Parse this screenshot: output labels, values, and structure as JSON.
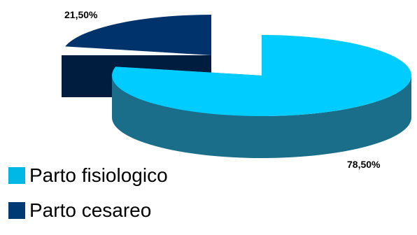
{
  "chart_data": {
    "type": "pie",
    "title": "",
    "categories": [
      "Parto fisiologico",
      "Parto cesareo"
    ],
    "values": [
      78.5,
      21.5
    ],
    "data_labels": [
      "78,50%",
      "21,50%"
    ],
    "colors": {
      "Parto fisiologico": {
        "top": "#00ccff",
        "side": "#1a6e8a"
      },
      "Parto cesareo": {
        "top": "#00336b",
        "side": "#001c3f"
      }
    },
    "three_d": true,
    "exploded": true,
    "legend_placement": "bottom-left"
  },
  "legend": {
    "items": [
      {
        "label": "Parto fisiologico",
        "color": "#00b8e6"
      },
      {
        "label": "Parto cesareo",
        "color": "#003a75"
      }
    ]
  }
}
